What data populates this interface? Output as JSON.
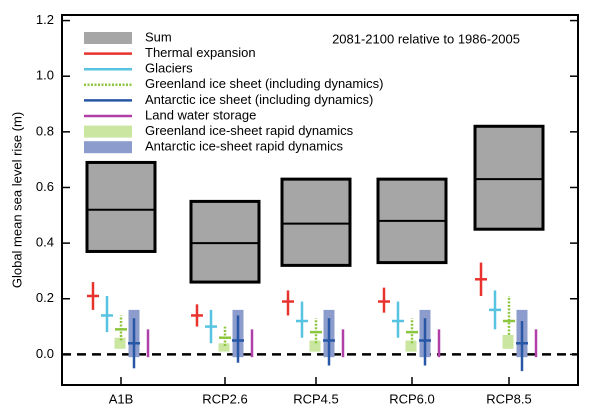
{
  "chart_data": {
    "type": "range",
    "annotation": "2081-2100 relative to 1986-2005",
    "y_label": "Global mean sea level rise (m)",
    "categories": [
      "A1B",
      "RCP2.6",
      "RCP4.5",
      "RCP6.0",
      "RCP8.5"
    ],
    "ylim": [
      -0.11,
      1.22
    ],
    "yticks": [
      {
        "value": 0,
        "label": "0.0"
      },
      {
        "value": 0.2,
        "label": "0.2"
      },
      {
        "value": 0.4,
        "label": "0.4"
      },
      {
        "value": 0.6,
        "label": "0.6"
      },
      {
        "value": 0.8,
        "label": "0.8"
      },
      {
        "value": 1,
        "label": "1.0"
      },
      {
        "value": 1.2,
        "label": "1.2"
      }
    ],
    "zero_line": true,
    "series": [
      {
        "name": "Sum",
        "color": "#a6a6a6",
        "mark": "box",
        "values": [
          0.52,
          0.4,
          0.47,
          0.48,
          0.63
        ],
        "low": [
          0.37,
          0.26,
          0.32,
          0.33,
          0.45
        ],
        "high": [
          0.69,
          0.55,
          0.63,
          0.63,
          0.82
        ]
      },
      {
        "name": "Thermal expansion",
        "color": "#e8322e",
        "mark": "cross",
        "values": [
          0.21,
          0.14,
          0.19,
          0.19,
          0.27
        ],
        "low": [
          0.16,
          0.1,
          0.14,
          0.15,
          0.21
        ],
        "high": [
          0.26,
          0.18,
          0.23,
          0.24,
          0.33
        ]
      },
      {
        "name": "Glaciers",
        "color": "#56c3e0",
        "mark": "cross",
        "values": [
          0.14,
          0.1,
          0.12,
          0.12,
          0.16
        ],
        "low": [
          0.08,
          0.04,
          0.06,
          0.06,
          0.09
        ],
        "high": [
          0.21,
          0.16,
          0.19,
          0.19,
          0.23
        ]
      },
      {
        "name": "Greenland ice sheet (including dynamics)",
        "color": "#8cc63e",
        "mark": "cross",
        "dash": true,
        "values": [
          0.09,
          0.06,
          0.08,
          0.08,
          0.12
        ],
        "low": [
          0.05,
          0.03,
          0.04,
          0.04,
          0.07
        ],
        "high": [
          0.14,
          0.1,
          0.13,
          0.13,
          0.21
        ]
      },
      {
        "name": "Antarctic ice sheet (including dynamics)",
        "color": "#2857a6",
        "mark": "cross",
        "values": [
          0.04,
          0.05,
          0.05,
          0.05,
          0.04
        ],
        "low": [
          -0.05,
          -0.03,
          -0.04,
          -0.04,
          -0.06
        ],
        "high": [
          0.13,
          0.14,
          0.13,
          0.13,
          0.12
        ]
      },
      {
        "name": "Land water storage",
        "color": "#b040a8",
        "mark": "cross",
        "values": [
          0.04,
          0.04,
          0.04,
          0.04,
          0.04
        ],
        "low": [
          -0.01,
          -0.01,
          -0.01,
          -0.01,
          -0.01
        ],
        "high": [
          0.09,
          0.09,
          0.09,
          0.09,
          0.09
        ]
      },
      {
        "name": "Greenland ice-sheet rapid dynamics",
        "color": "#cbe6a0",
        "mark": "range-box",
        "low": [
          0.02,
          0.01,
          0.01,
          0.01,
          0.02
        ],
        "high": [
          0.06,
          0.04,
          0.05,
          0.05,
          0.07
        ]
      },
      {
        "name": "Antarctic ice-sheet rapid dynamics",
        "color": "#8c9ccc",
        "mark": "range-box",
        "low": [
          -0.01,
          -0.01,
          -0.01,
          -0.01,
          -0.01
        ],
        "high": [
          0.16,
          0.16,
          0.16,
          0.16,
          0.16
        ]
      }
    ]
  }
}
